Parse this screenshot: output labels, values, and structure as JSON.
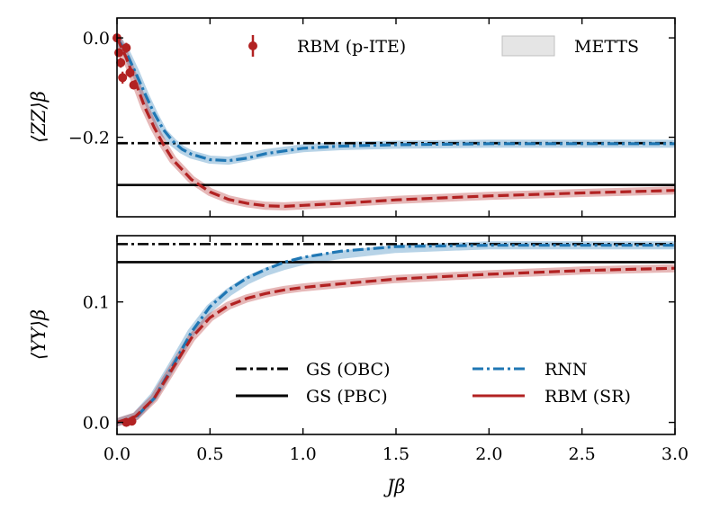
{
  "chart_data": [
    {
      "type": "line",
      "panel": "top",
      "ylabel": "⟨ZZ⟩β",
      "xlim": [
        0,
        3
      ],
      "ylim": [
        -0.36,
        0.04
      ],
      "yticks": [
        0.0,
        -0.2
      ],
      "ytick_labels": [
        "0.0",
        "−0.2"
      ],
      "reference_lines": [
        {
          "name": "GS (OBC)",
          "y": -0.212,
          "style": "dashdot",
          "color": "#000000"
        },
        {
          "name": "GS (PBC)",
          "y": -0.296,
          "style": "solid",
          "color": "#000000"
        }
      ],
      "series": [
        {
          "name": "METTS (rnn)",
          "style": "band",
          "color": "#1f77b4",
          "x": [
            0,
            0.05,
            0.1,
            0.15,
            0.2,
            0.25,
            0.3,
            0.35,
            0.4,
            0.5,
            0.6,
            0.7,
            0.8,
            1.0,
            1.2,
            1.5,
            2.0,
            2.5,
            3.0
          ],
          "y": [
            0,
            -0.03,
            -0.07,
            -0.115,
            -0.155,
            -0.19,
            -0.21,
            -0.225,
            -0.235,
            -0.245,
            -0.247,
            -0.24,
            -0.232,
            -0.222,
            -0.218,
            -0.215,
            -0.213,
            -0.213,
            -0.213
          ]
        },
        {
          "name": "METTS (rbm)",
          "style": "band",
          "color": "#b22222",
          "x": [
            0,
            0.05,
            0.1,
            0.15,
            0.2,
            0.25,
            0.3,
            0.35,
            0.4,
            0.5,
            0.6,
            0.7,
            0.8,
            0.9,
            1.0,
            1.2,
            1.5,
            2.0,
            2.5,
            3.0
          ],
          "y": [
            0,
            -0.04,
            -0.09,
            -0.14,
            -0.18,
            -0.215,
            -0.245,
            -0.265,
            -0.285,
            -0.31,
            -0.325,
            -0.333,
            -0.338,
            -0.339,
            -0.337,
            -0.333,
            -0.326,
            -0.318,
            -0.312,
            -0.307
          ]
        },
        {
          "name": "RNN",
          "style": "dashdot",
          "color": "#1f77b4",
          "x": [
            0,
            0.05,
            0.1,
            0.15,
            0.2,
            0.25,
            0.3,
            0.35,
            0.4,
            0.5,
            0.6,
            0.7,
            0.8,
            1.0,
            1.2,
            1.5,
            2.0,
            2.5,
            3.0
          ],
          "y": [
            0,
            -0.03,
            -0.07,
            -0.112,
            -0.152,
            -0.185,
            -0.208,
            -0.224,
            -0.234,
            -0.245,
            -0.247,
            -0.242,
            -0.233,
            -0.222,
            -0.218,
            -0.215,
            -0.213,
            -0.213,
            -0.213
          ]
        },
        {
          "name": "RBM (SR)",
          "style": "dashed",
          "color": "#b22222",
          "x": [
            0,
            0.05,
            0.1,
            0.15,
            0.2,
            0.25,
            0.3,
            0.35,
            0.4,
            0.5,
            0.6,
            0.7,
            0.8,
            0.9,
            1.0,
            1.2,
            1.5,
            2.0,
            2.5,
            3.0
          ],
          "y": [
            0,
            -0.04,
            -0.09,
            -0.14,
            -0.18,
            -0.215,
            -0.245,
            -0.265,
            -0.285,
            -0.31,
            -0.325,
            -0.333,
            -0.338,
            -0.339,
            -0.337,
            -0.333,
            -0.326,
            -0.318,
            -0.312,
            -0.307
          ]
        }
      ],
      "points": {
        "name": "RBM (p-ITE)",
        "color": "#b22222",
        "x": [
          0.0,
          0.01,
          0.02,
          0.03,
          0.05,
          0.07,
          0.09
        ],
        "y": [
          0.0,
          -0.03,
          -0.05,
          -0.08,
          -0.02,
          -0.07,
          -0.095
        ],
        "yerr": [
          0.006,
          0.008,
          0.01,
          0.012,
          0.01,
          0.01,
          0.006
        ]
      },
      "legend": [
        "RBM (p-ITE)",
        "METTS"
      ],
      "legend_position": "top-right"
    },
    {
      "type": "line",
      "panel": "bottom",
      "ylabel": "⟨YY⟩β",
      "xlabel": "Jβ",
      "xlim": [
        0,
        3
      ],
      "ylim": [
        -0.01,
        0.155
      ],
      "xticks": [
        0.0,
        0.5,
        1.0,
        1.5,
        2.0,
        2.5,
        3.0
      ],
      "xtick_labels": [
        "0.0",
        "0.5",
        "1.0",
        "1.5",
        "2.0",
        "2.5",
        "3.0"
      ],
      "yticks": [
        0.0,
        0.1
      ],
      "ytick_labels": [
        "0.0",
        "0.1"
      ],
      "reference_lines": [
        {
          "name": "GS (OBC)",
          "y": 0.148,
          "style": "dashdot",
          "color": "#000000"
        },
        {
          "name": "GS (PBC)",
          "y": 0.133,
          "style": "solid",
          "color": "#000000"
        }
      ],
      "series": [
        {
          "name": "METTS (rnn)",
          "style": "band",
          "color": "#1f77b4",
          "x": [
            0,
            0.1,
            0.2,
            0.3,
            0.4,
            0.5,
            0.6,
            0.7,
            0.8,
            0.9,
            1.0,
            1.2,
            1.5,
            2.0,
            2.5,
            3.0
          ],
          "y": [
            0,
            0.005,
            0.022,
            0.048,
            0.075,
            0.095,
            0.108,
            0.118,
            0.125,
            0.13,
            0.134,
            0.139,
            0.144,
            0.147,
            0.147,
            0.147
          ]
        },
        {
          "name": "METTS (rbm)",
          "style": "band",
          "color": "#b22222",
          "x": [
            0,
            0.1,
            0.2,
            0.3,
            0.4,
            0.5,
            0.6,
            0.7,
            0.8,
            0.9,
            1.0,
            1.2,
            1.5,
            2.0,
            2.5,
            3.0
          ],
          "y": [
            0,
            0.005,
            0.02,
            0.045,
            0.07,
            0.087,
            0.097,
            0.103,
            0.107,
            0.11,
            0.112,
            0.115,
            0.119,
            0.123,
            0.126,
            0.128
          ]
        },
        {
          "name": "RNN",
          "style": "dashdot",
          "color": "#1f77b4",
          "x": [
            0,
            0.1,
            0.2,
            0.3,
            0.4,
            0.5,
            0.6,
            0.7,
            0.8,
            0.9,
            1.0,
            1.2,
            1.5,
            2.0,
            2.5,
            3.0
          ],
          "y": [
            0,
            0.004,
            0.02,
            0.047,
            0.075,
            0.096,
            0.11,
            0.12,
            0.127,
            0.133,
            0.137,
            0.142,
            0.146,
            0.147,
            0.147,
            0.147
          ]
        },
        {
          "name": "RBM (SR)",
          "style": "dashed",
          "color": "#b22222",
          "x": [
            0,
            0.1,
            0.2,
            0.3,
            0.4,
            0.5,
            0.6,
            0.7,
            0.8,
            0.9,
            1.0,
            1.2,
            1.5,
            2.0,
            2.5,
            3.0
          ],
          "y": [
            0,
            0.005,
            0.02,
            0.045,
            0.07,
            0.087,
            0.097,
            0.103,
            0.107,
            0.11,
            0.112,
            0.115,
            0.119,
            0.123,
            0.126,
            0.128
          ]
        }
      ],
      "points": {
        "name": "RBM (p-ITE)",
        "color": "#b22222",
        "x": [
          0.05,
          0.08
        ],
        "y": [
          0.0,
          0.001
        ],
        "yerr": [
          0.002,
          0.002
        ]
      },
      "legend": [
        "GS (OBC)",
        "GS (PBC)",
        "RNN",
        "RBM (SR)"
      ],
      "legend_position": "bottom-right"
    }
  ]
}
